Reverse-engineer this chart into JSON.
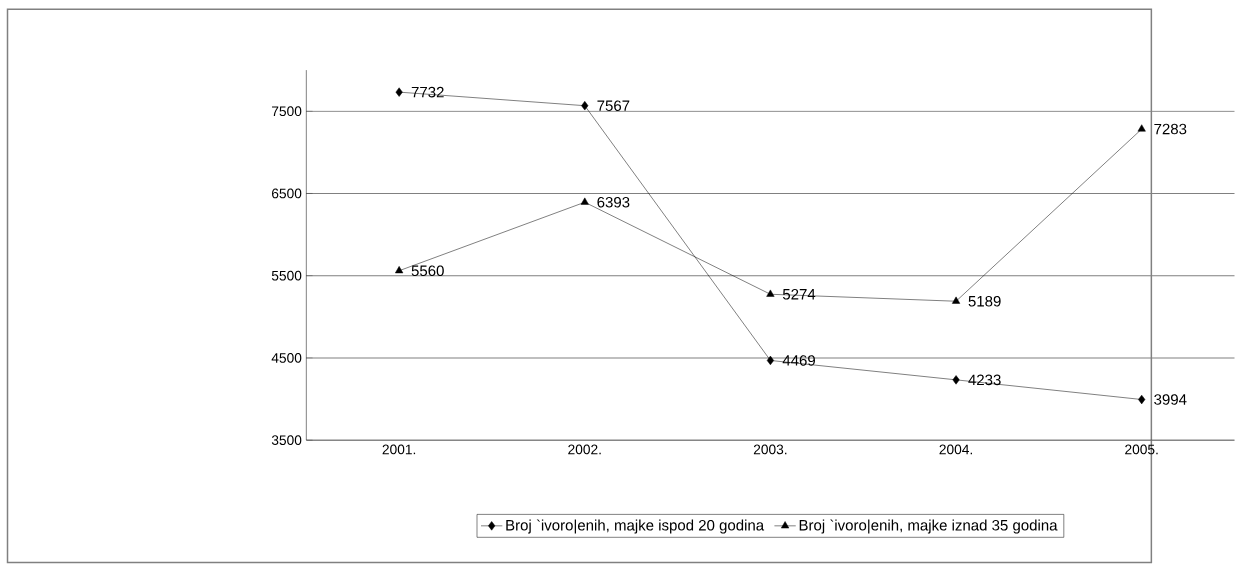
{
  "chart_data": {
    "type": "line",
    "categories": [
      "2001.",
      "2002.",
      "2003.",
      "2004.",
      "2005."
    ],
    "series": [
      {
        "name": "Broj `ivoro|enih, majke ispod 20 godina",
        "color": "#000000",
        "marker": "diamond",
        "values": [
          7732,
          7567,
          4469,
          4233,
          3994
        ]
      },
      {
        "name": "Broj `ivoro|enih, majke iznad 35 godina",
        "color": "#000000",
        "marker": "triangle",
        "values": [
          5560,
          6393,
          5274,
          5189,
          7283
        ]
      }
    ],
    "ylim": [
      3500,
      8000
    ],
    "yticks": [
      3500,
      4500,
      5500,
      6500,
      7500
    ],
    "grid": "y",
    "legend": "bottom",
    "data_labels": true,
    "line_style": "solid"
  }
}
